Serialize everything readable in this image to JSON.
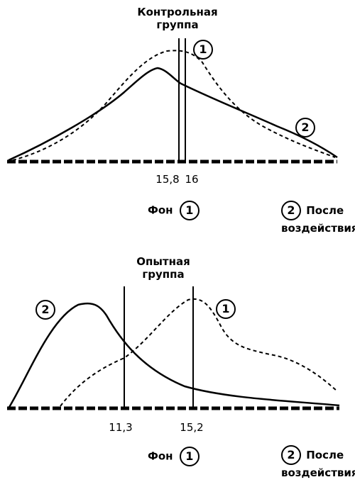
{
  "control": {
    "title_line1": "Контрольная",
    "title_line2": "группа",
    "marker_1": "1",
    "marker_2": "2",
    "value_a": "15,8",
    "value_b": "16",
    "legend_left_text": "Фон",
    "legend_left_num": "1",
    "legend_right_num": "2",
    "legend_right_line1": "После",
    "legend_right_line2": "воздействия"
  },
  "experimental": {
    "title_line1": "Опытная",
    "title_line2": "группа",
    "marker_1": "1",
    "marker_2": "2",
    "value_a": "11,3",
    "value_b": "15,2",
    "legend_left_text": "Фон",
    "legend_left_num": "1",
    "legend_right_num": "2",
    "legend_right_line1": "После",
    "legend_right_line2": "воздействия"
  }
}
